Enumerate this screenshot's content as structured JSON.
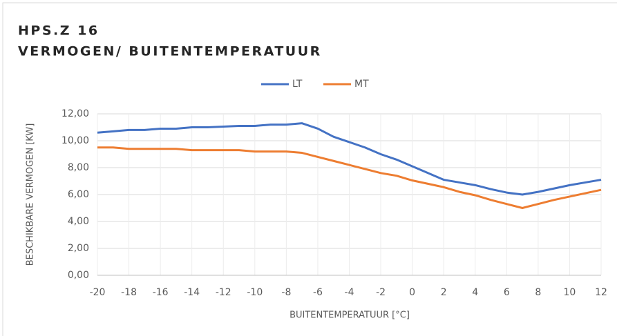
{
  "chart_data": {
    "type": "line",
    "title": "HPS.Z 16",
    "subtitle": "VERMOGEN/ BUITENTEMPERATUUR",
    "x_label": "BUITENTEMPERATUUR [°C]",
    "y_label": "BESCHIKBARE VERMOGEN [KW]",
    "x": [
      -20,
      -19,
      -18,
      -17,
      -16,
      -15,
      -14,
      -13,
      -12,
      -11,
      -10,
      -9,
      -8,
      -7,
      -6,
      -5,
      -4,
      -3,
      -2,
      -1,
      0,
      1,
      2,
      3,
      4,
      5,
      6,
      7,
      8,
      9,
      10,
      11,
      12
    ],
    "series": [
      {
        "name": "LT",
        "color": "#4472c4",
        "values": [
          10.6,
          10.7,
          10.8,
          10.8,
          10.9,
          10.9,
          11.0,
          11.0,
          11.05,
          11.1,
          11.1,
          11.2,
          11.2,
          11.3,
          10.9,
          10.3,
          9.9,
          9.5,
          9.0,
          8.6,
          8.1,
          7.6,
          7.1,
          6.9,
          6.7,
          6.4,
          6.15,
          6.0,
          6.2,
          6.45,
          6.7,
          6.9,
          7.1
        ]
      },
      {
        "name": "MT",
        "color": "#ed7d31",
        "values": [
          9.5,
          9.5,
          9.4,
          9.4,
          9.4,
          9.4,
          9.3,
          9.3,
          9.3,
          9.3,
          9.2,
          9.2,
          9.2,
          9.1,
          8.8,
          8.5,
          8.2,
          7.9,
          7.6,
          7.4,
          7.05,
          6.8,
          6.55,
          6.2,
          5.95,
          5.6,
          5.3,
          5.0,
          5.3,
          5.6,
          5.85,
          6.1,
          6.35
        ]
      }
    ],
    "xlim": [
      -20,
      12
    ],
    "xticks": [
      -20,
      -18,
      -16,
      -14,
      -12,
      -10,
      -8,
      -6,
      -4,
      -2,
      0,
      2,
      4,
      6,
      8,
      10,
      12
    ],
    "ylim": [
      0,
      12
    ],
    "yticks": [
      {
        "value": 0,
        "label": "0,00"
      },
      {
        "value": 2,
        "label": "2,00"
      },
      {
        "value": 4,
        "label": "4,00"
      },
      {
        "value": 6,
        "label": "6,00"
      },
      {
        "value": 8,
        "label": "8,00"
      },
      {
        "value": 10,
        "label": "10,00"
      },
      {
        "value": 12,
        "label": "12,00"
      }
    ],
    "grid": true,
    "legend": "top"
  }
}
